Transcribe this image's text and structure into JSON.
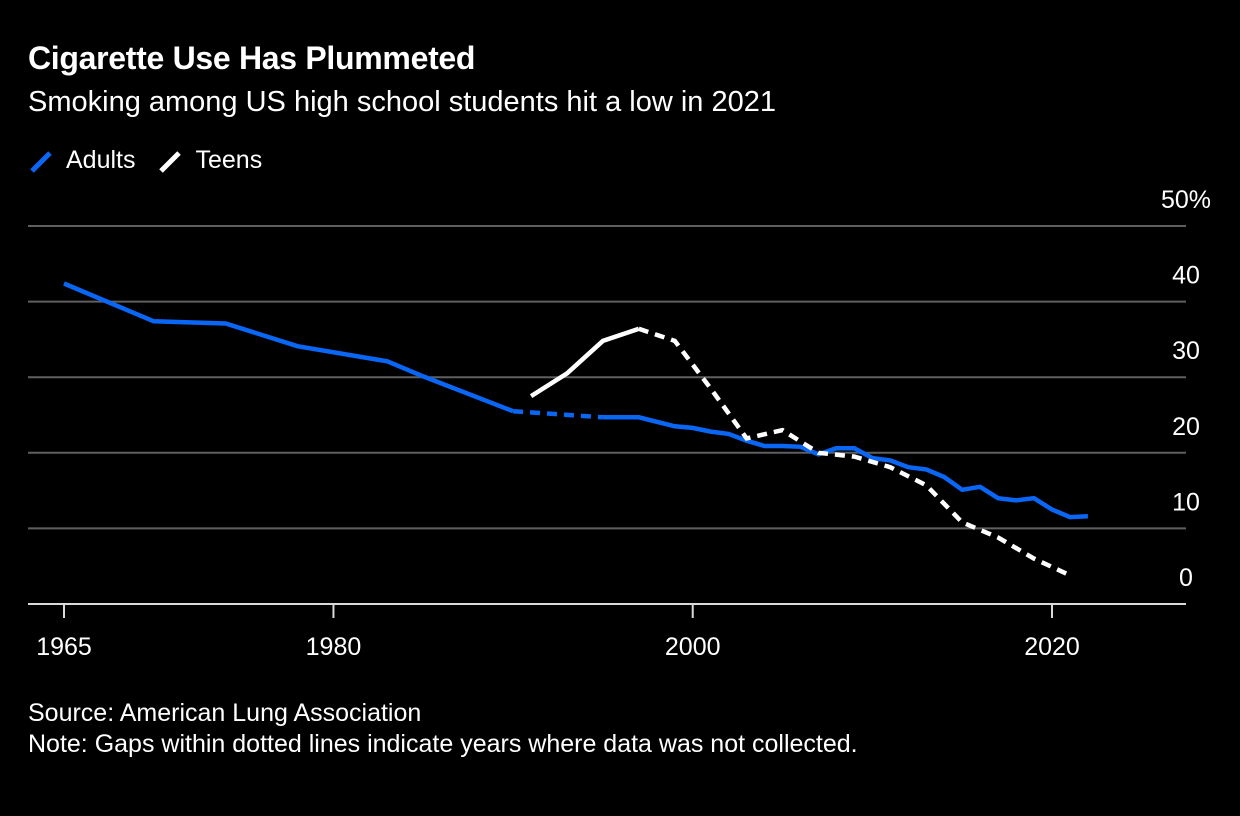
{
  "chart": {
    "title": "Cigarette Use Has Plummeted",
    "subtitle": "Smoking among US high school students hit a low in 2021",
    "source": "Source: American Lung Association",
    "note": "Note: Gaps within dotted lines indicate years where data was not collected."
  },
  "chart_data": {
    "type": "line",
    "title": "Cigarette Use Has Plummeted",
    "subtitle": "Smoking among US high school students hit a low in 2021",
    "xlabel": "",
    "ylabel": "",
    "xlim": [
      1965,
      2022
    ],
    "ylim": [
      0,
      50
    ],
    "x_ticks": [
      {
        "value": 1965,
        "label": "1965"
      },
      {
        "value": 1980,
        "label": "1980"
      },
      {
        "value": 2000,
        "label": "2000"
      },
      {
        "value": 2020,
        "label": "2020"
      }
    ],
    "y_ticks": [
      {
        "value": 0,
        "label": "0"
      },
      {
        "value": 10,
        "label": "10"
      },
      {
        "value": 20,
        "label": "20"
      },
      {
        "value": 30,
        "label": "30"
      },
      {
        "value": 40,
        "label": "40"
      },
      {
        "value": 50,
        "label": "50%"
      }
    ],
    "grid": true,
    "legend_position": "top-left",
    "series": [
      {
        "name": "Adults",
        "color": "#0A66F4",
        "segments": [
          {
            "style": "solid",
            "points": [
              [
                1965,
                42.4
              ],
              [
                1970,
                37.4
              ],
              [
                1974,
                37.1
              ],
              [
                1978,
                34.1
              ],
              [
                1983,
                32.1
              ],
              [
                1985,
                30.1
              ],
              [
                1990,
                25.5
              ]
            ]
          },
          {
            "style": "dotted",
            "points": [
              [
                1990,
                25.5
              ],
              [
                1995,
                24.7
              ]
            ]
          },
          {
            "style": "solid",
            "points": [
              [
                1995,
                24.7
              ],
              [
                1997,
                24.7
              ],
              [
                1999,
                23.5
              ],
              [
                2000,
                23.3
              ],
              [
                2001,
                22.8
              ],
              [
                2002,
                22.5
              ],
              [
                2003,
                21.6
              ],
              [
                2004,
                20.9
              ],
              [
                2005,
                20.9
              ],
              [
                2006,
                20.8
              ],
              [
                2007,
                19.8
              ],
              [
                2008,
                20.6
              ],
              [
                2009,
                20.6
              ],
              [
                2010,
                19.3
              ],
              [
                2011,
                19.0
              ],
              [
                2012,
                18.1
              ],
              [
                2013,
                17.8
              ],
              [
                2014,
                16.8
              ],
              [
                2015,
                15.1
              ],
              [
                2016,
                15.5
              ],
              [
                2017,
                14.0
              ],
              [
                2018,
                13.7
              ],
              [
                2019,
                14.0
              ],
              [
                2020,
                12.5
              ],
              [
                2021,
                11.5
              ],
              [
                2022,
                11.6
              ]
            ]
          }
        ]
      },
      {
        "name": "Teens",
        "color": "#FFFFFF",
        "segments": [
          {
            "style": "solid",
            "points": [
              [
                1991,
                27.5
              ],
              [
                1993,
                30.5
              ],
              [
                1995,
                34.8
              ],
              [
                1997,
                36.4
              ]
            ]
          },
          {
            "style": "dotted",
            "points": [
              [
                1997,
                36.4
              ],
              [
                1999,
                34.8
              ],
              [
                2001,
                28.5
              ],
              [
                2003,
                21.9
              ],
              [
                2005,
                23.0
              ],
              [
                2007,
                20.0
              ],
              [
                2009,
                19.5
              ],
              [
                2011,
                18.1
              ],
              [
                2013,
                15.7
              ],
              [
                2015,
                10.8
              ],
              [
                2017,
                8.8
              ],
              [
                2019,
                6.0
              ],
              [
                2021,
                3.8
              ]
            ]
          }
        ]
      }
    ]
  }
}
